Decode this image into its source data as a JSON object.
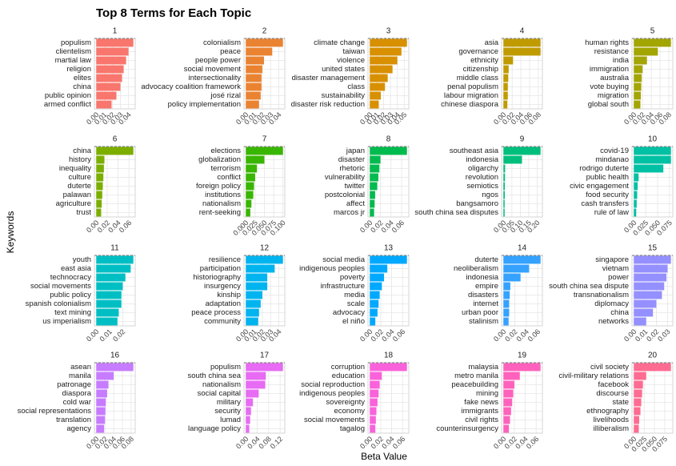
{
  "title": "Top 8 Terms for Each Topic",
  "x_label": "Beta Value",
  "y_label": "Keywords",
  "chart_data": [
    {
      "type": "bar",
      "title": "1",
      "color": "#f8766d",
      "categories": [
        "populism",
        "clientelism",
        "martial law",
        "religion",
        "elites",
        "china",
        "public opinion",
        "armed conflict"
      ],
      "values": [
        0.046,
        0.04,
        0.037,
        0.034,
        0.032,
        0.03,
        0.025,
        0.019
      ],
      "xlim": [
        -0.0023,
        0.0483
      ],
      "xticks": [
        {
          "value": 0,
          "label": "0.00"
        },
        0.01,
        0.02,
        0.03,
        0.04
      ]
    },
    {
      "type": "bar",
      "title": "2",
      "color": "#ea8331",
      "categories": [
        "colonialism",
        "peace",
        "people power",
        "social movement",
        "intersectionality",
        "advocacy coalition framework",
        "josé rizal",
        "policy implementation"
      ],
      "values": [
        0.045,
        0.032,
        0.022,
        0.02,
        0.019,
        0.019,
        0.018,
        0.016
      ],
      "xlim": [
        -0.00225,
        0.04725
      ],
      "xticks": [
        {
          "value": 0,
          "label": "0.00"
        },
        0.01,
        0.02,
        0.03,
        0.04
      ]
    },
    {
      "type": "bar",
      "title": "3",
      "color": "#d89000",
      "categories": [
        "climate change",
        "taiwan",
        "violence",
        "united states",
        "disaster management",
        "class",
        "sustainability",
        "disaster risk reduction"
      ],
      "values": [
        0.054,
        0.046,
        0.04,
        0.033,
        0.026,
        0.022,
        0.016,
        0.013
      ],
      "xlim": [
        -0.0027,
        0.0567
      ],
      "xticks": [
        {
          "value": 0,
          "label": "0.00"
        },
        0.01,
        0.02,
        0.03,
        0.04,
        0.05
      ]
    },
    {
      "type": "bar",
      "title": "4",
      "color": "#c09b00",
      "categories": [
        "asia",
        "governance",
        "ethnicity",
        "citizenship",
        "middle class",
        "penal populism",
        "labour migration",
        "chinese diaspora"
      ],
      "values": [
        0.085,
        0.085,
        0.022,
        0.012,
        0.011,
        0.01,
        0.01,
        0.009
      ],
      "xlim": [
        -0.00425,
        0.08925
      ],
      "xticks": [
        {
          "value": 0,
          "label": "0.00"
        },
        0.02,
        0.04,
        0.06,
        0.08
      ]
    },
    {
      "type": "bar",
      "title": "5",
      "color": "#a3a500",
      "categories": [
        "human rights",
        "resistance",
        "india",
        "immigration",
        "australia",
        "vote buying",
        "migration",
        "global south"
      ],
      "values": [
        0.085,
        0.055,
        0.03,
        0.02,
        0.018,
        0.017,
        0.016,
        0.015
      ],
      "xlim": [
        -0.00425,
        0.08925
      ],
      "xticks": [
        {
          "value": 0,
          "label": "0.00"
        },
        0.02,
        0.04,
        0.06,
        0.08
      ]
    },
    {
      "type": "bar",
      "title": "6",
      "color": "#7cae00",
      "categories": [
        "china",
        "history",
        "inequality",
        "culture",
        "duterte",
        "palawan",
        "agriculture",
        "trust"
      ],
      "values": [
        0.068,
        0.015,
        0.014,
        0.013,
        0.012,
        0.011,
        0.01,
        0.009
      ],
      "xlim": [
        -0.0034,
        0.0714
      ],
      "xticks": [
        {
          "value": 0,
          "label": "0.00"
        },
        0.02,
        0.04,
        0.06
      ]
    },
    {
      "type": "bar",
      "title": "7",
      "color": "#39b600",
      "categories": [
        "elections",
        "globalization",
        "terrorism",
        "conflict",
        "foreign policy",
        "institutions",
        "nationalism",
        "rent-seeking"
      ],
      "values": [
        0.1,
        0.05,
        0.03,
        0.025,
        0.022,
        0.02,
        0.015,
        0.012
      ],
      "xlim": [
        -0.005,
        0.105
      ],
      "xticks": [
        {
          "value": 0,
          "label": "0.000"
        },
        0.025,
        {
          "value": 0.05,
          "label": "0.050"
        },
        0.075,
        {
          "value": 0.1,
          "label": "0.100"
        }
      ]
    },
    {
      "type": "bar",
      "title": "8",
      "color": "#00bb4e",
      "categories": [
        "japan",
        "disaster",
        "rhetoric",
        "vulnerability",
        "twitter",
        "postcolonial",
        "affect",
        "marcos jr"
      ],
      "values": [
        0.07,
        0.02,
        0.018,
        0.016,
        0.014,
        0.01,
        0.009,
        0.008
      ],
      "xlim": [
        -0.0035,
        0.0735
      ],
      "xticks": [
        {
          "value": 0,
          "label": "0.00"
        },
        0.02,
        0.04,
        0.06
      ]
    },
    {
      "type": "bar",
      "title": "9",
      "color": "#00bf7d",
      "categories": [
        "southeast asia",
        "indonesia",
        "oligarchy",
        "revolution",
        "semiotics",
        "ngos",
        "bangsamoro",
        "south china sea disputes"
      ],
      "values": [
        0.22,
        0.11,
        0.01,
        0.009,
        0.008,
        0.008,
        0.007,
        0.007
      ],
      "xlim": [
        -0.011,
        0.231
      ],
      "xticks": [
        {
          "value": 0,
          "label": "0.00"
        },
        0.05,
        {
          "value": 0.1,
          "label": "0.10"
        },
        0.15,
        {
          "value": 0.2,
          "label": "0.20"
        }
      ]
    },
    {
      "type": "bar",
      "title": "10",
      "color": "#00c1a3",
      "categories": [
        "covid-19",
        "mindanao",
        "rodrigo duterte",
        "public health",
        "civic engagement",
        "food security",
        "cash transfers",
        "rule of law"
      ],
      "values": [
        0.078,
        0.078,
        0.062,
        0.01,
        0.008,
        0.007,
        0.006,
        0.005
      ],
      "xlim": [
        -0.0039,
        0.0819
      ],
      "xticks": [
        {
          "value": 0,
          "label": "0.00"
        },
        0.025,
        {
          "value": 0.05,
          "label": "0.050"
        },
        0.075
      ]
    },
    {
      "type": "bar",
      "title": "11",
      "color": "#00bfc4",
      "categories": [
        "youth",
        "east asia",
        "technocracy",
        "social movements",
        "public policy",
        "spanish colonialism",
        "text mining",
        "us imperialism"
      ],
      "values": [
        0.028,
        0.026,
        0.022,
        0.02,
        0.019,
        0.019,
        0.017,
        0.016
      ],
      "xlim": [
        -0.0014,
        0.0294
      ],
      "xticks": [
        {
          "value": 0,
          "label": "0.00"
        },
        0.01,
        0.02
      ]
    },
    {
      "type": "bar",
      "title": "12",
      "color": "#00b4ef",
      "categories": [
        "resilience",
        "participation",
        "historiography",
        "insurgency",
        "kinship",
        "adaptation",
        "peace process",
        "community"
      ],
      "values": [
        0.045,
        0.035,
        0.026,
        0.026,
        0.02,
        0.018,
        0.016,
        0.015
      ],
      "xlim": [
        -0.00225,
        0.04725
      ],
      "xticks": [
        {
          "value": 0,
          "label": "0.00"
        },
        0.01,
        0.02,
        0.03,
        0.04
      ]
    },
    {
      "type": "bar",
      "title": "13",
      "color": "#00a9ff",
      "categories": [
        "social media",
        "indigenous peoples",
        "poverty",
        "infrastructure",
        "media",
        "scale",
        "advocacy",
        "el niño"
      ],
      "values": [
        0.068,
        0.032,
        0.026,
        0.022,
        0.018,
        0.016,
        0.014,
        0.01
      ],
      "xlim": [
        -0.0034,
        0.0714
      ],
      "xticks": [
        {
          "value": 0,
          "label": "0.00"
        },
        0.02,
        0.04,
        0.06
      ]
    },
    {
      "type": "bar",
      "title": "14",
      "color": "#35a2ff",
      "categories": [
        "duterte",
        "neoliberalism",
        "indonesia",
        "empire",
        "disasters",
        "internet",
        "urban poor",
        "stalinism"
      ],
      "values": [
        0.065,
        0.045,
        0.03,
        0.012,
        0.011,
        0.01,
        0.01,
        0.009
      ],
      "xlim": [
        -0.00325,
        0.06825
      ],
      "xticks": [
        {
          "value": 0,
          "label": "0.00"
        },
        0.02,
        0.04,
        0.06
      ]
    },
    {
      "type": "bar",
      "title": "15",
      "color": "#9590ff",
      "categories": [
        "singapore",
        "vietnam",
        "power",
        "south china sea dispute",
        "transnationalism",
        "diplomacy",
        "china",
        "networks"
      ],
      "values": [
        0.033,
        0.03,
        0.029,
        0.027,
        0.025,
        0.02,
        0.017,
        0.011
      ],
      "xlim": [
        -0.00165,
        0.03465
      ],
      "xticks": [
        {
          "value": 0,
          "label": "0.00"
        },
        0.01,
        0.02,
        0.03
      ]
    },
    {
      "type": "bar",
      "title": "16",
      "color": "#c77cff",
      "categories": [
        "asean",
        "manila",
        "patronage",
        "diaspora",
        "cold war",
        "social representations",
        "translation",
        "agency"
      ],
      "values": [
        0.085,
        0.04,
        0.028,
        0.025,
        0.022,
        0.021,
        0.02,
        0.018
      ],
      "xlim": [
        -0.00425,
        0.08925
      ],
      "xticks": [
        {
          "value": 0,
          "label": "0.00"
        },
        0.02,
        0.04,
        0.06,
        0.08
      ]
    },
    {
      "type": "bar",
      "title": "17",
      "color": "#e76bf3",
      "categories": [
        "populism",
        "south china sea",
        "nationalism",
        "social capital",
        "military",
        "security",
        "lumad",
        "language policy"
      ],
      "values": [
        0.13,
        0.07,
        0.068,
        0.045,
        0.025,
        0.018,
        0.015,
        0.012
      ],
      "xlim": [
        -0.0065,
        0.1365
      ],
      "xticks": [
        {
          "value": 0,
          "label": "0.00"
        },
        0.04,
        0.08,
        0.12
      ]
    },
    {
      "type": "bar",
      "title": "18",
      "color": "#fa62db",
      "categories": [
        "corruption",
        "education",
        "social reproduction",
        "indigenous peoples",
        "sovereignty",
        "economy",
        "social movements",
        "tagalog"
      ],
      "values": [
        0.068,
        0.022,
        0.018,
        0.016,
        0.014,
        0.012,
        0.011,
        0.01
      ],
      "xlim": [
        -0.0034,
        0.0714
      ],
      "xticks": [
        {
          "value": 0,
          "label": "0.00"
        },
        0.02,
        0.04,
        0.06
      ]
    },
    {
      "type": "bar",
      "title": "19",
      "color": "#ff62bc",
      "categories": [
        "malaysia",
        "metro manila",
        "peacebuilding",
        "mining",
        "fake news",
        "immigrants",
        "civil rights",
        "counterinsurgency"
      ],
      "values": [
        0.068,
        0.03,
        0.02,
        0.018,
        0.016,
        0.014,
        0.012,
        0.01
      ],
      "xlim": [
        -0.0034,
        0.0714
      ],
      "xticks": [
        {
          "value": 0,
          "label": "0.00"
        },
        0.02,
        0.04,
        0.06
      ]
    },
    {
      "type": "bar",
      "title": "20",
      "color": "#ff6c91",
      "categories": [
        "civil society",
        "civil-military relations",
        "facebook",
        "discourse",
        "state",
        "ethnography",
        "livelihoods",
        "illiberalism"
      ],
      "values": [
        0.09,
        0.03,
        0.022,
        0.02,
        0.018,
        0.016,
        0.013,
        0.012
      ],
      "xlim": [
        -0.0045,
        0.0945
      ],
      "xticks": [
        {
          "value": 0,
          "label": "0.00"
        },
        0.025,
        {
          "value": 0.05,
          "label": "0.050"
        },
        0.075
      ]
    }
  ]
}
